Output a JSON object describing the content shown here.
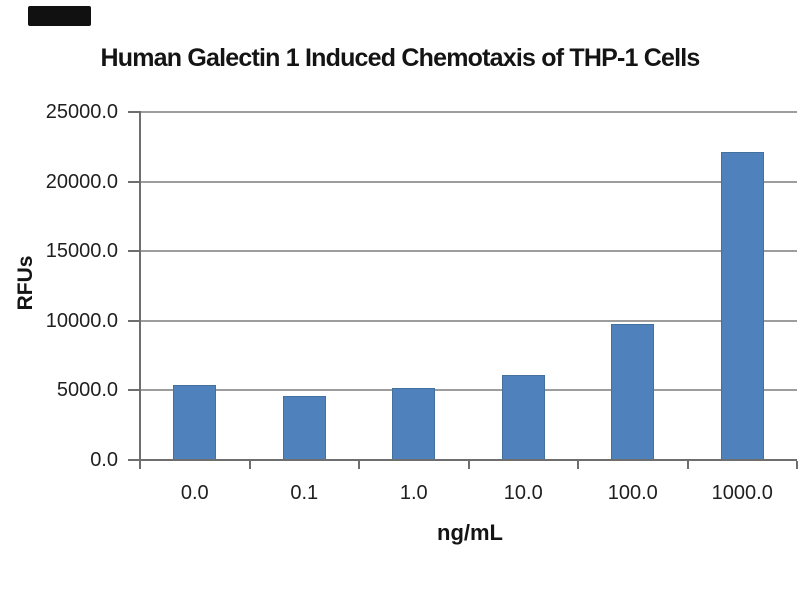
{
  "page": {
    "background": "#ffffff"
  },
  "badge": {
    "color": "#111111"
  },
  "chart_data": {
    "type": "bar",
    "title": "Human Galectin 1 Induced Chemotaxis of THP-1 Cells",
    "xlabel": "ng/mL",
    "ylabel": "RFUs",
    "categories": [
      "0.0",
      "0.1",
      "1.0",
      "10.0",
      "100.0",
      "1000.0"
    ],
    "values": [
      5400,
      4600,
      5200,
      6100,
      9800,
      22100
    ],
    "ylim": [
      0,
      25000
    ],
    "ytick_step": 5000,
    "ytick_labels": [
      "0.0",
      "5000.0",
      "10000.0",
      "15000.0",
      "20000.0",
      "25000.0"
    ],
    "grid": true,
    "legend": false,
    "colors": {
      "bar": "#4f81bd",
      "bar_border": "#41719c",
      "gridline": "#9d9d9d",
      "axis": "#6e6e6e",
      "text": "#1f1f1f"
    }
  }
}
